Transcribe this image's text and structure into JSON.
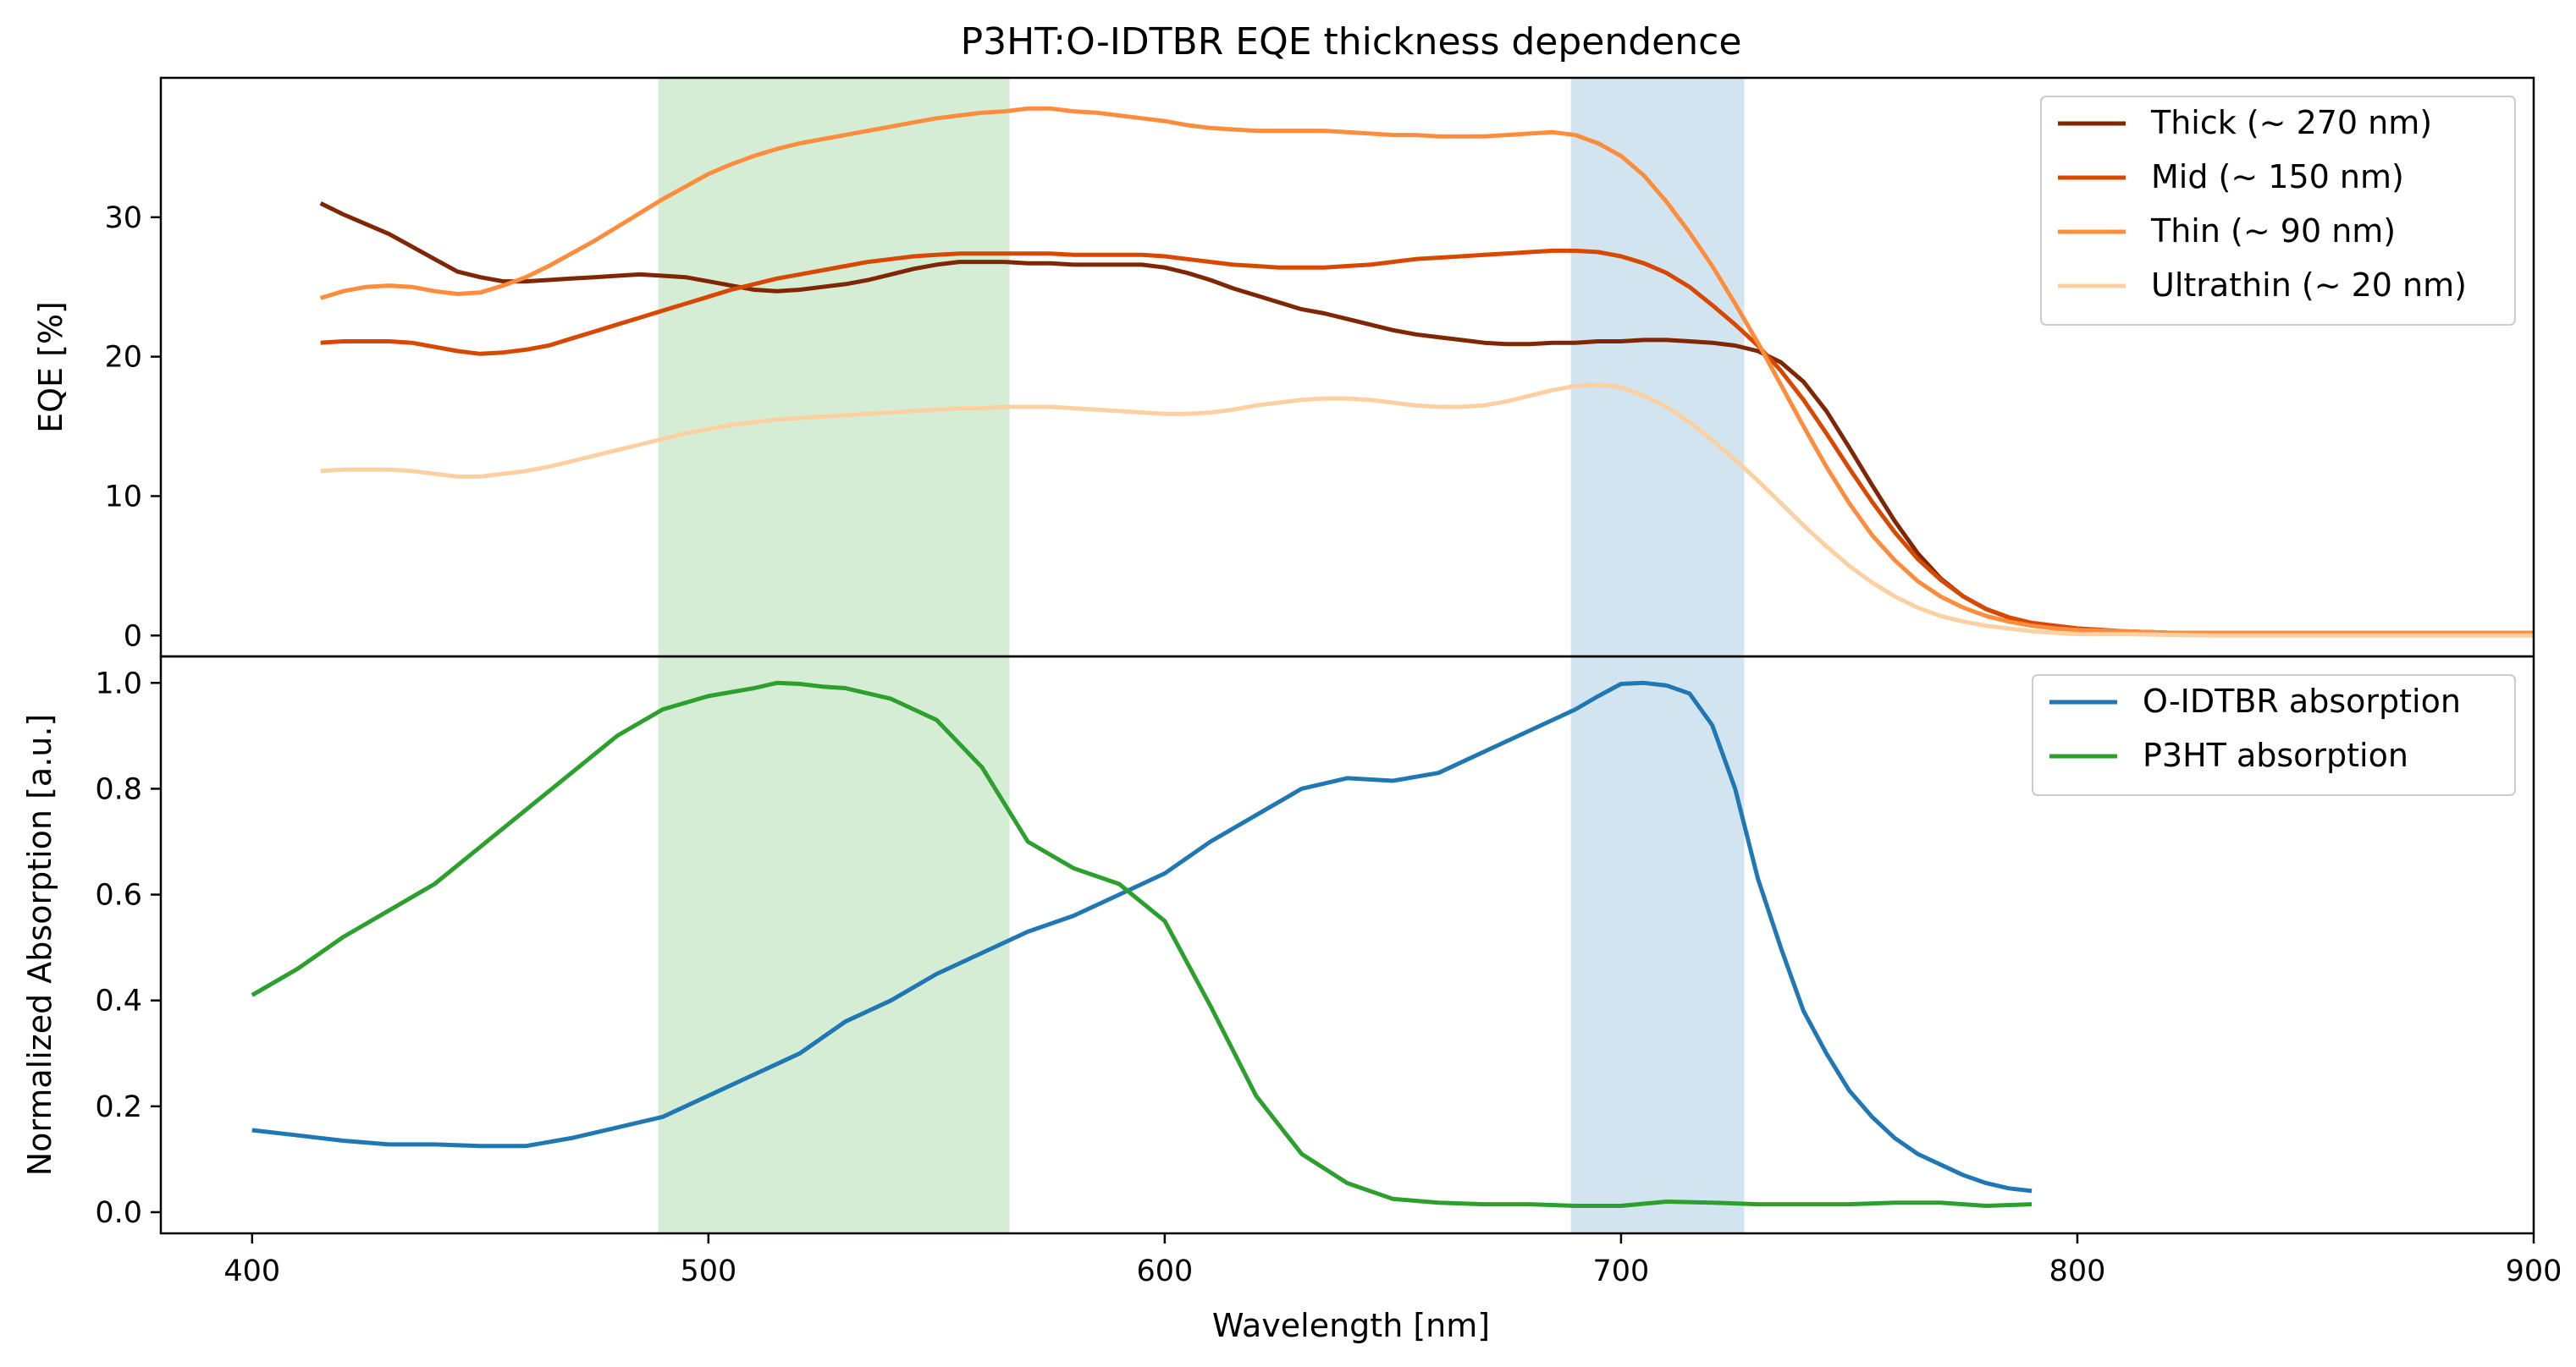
{
  "chart_data": {
    "type": "line",
    "title": "P3HT:O-IDTBR EQE thickness dependence",
    "xlabel": "Wavelength [nm]",
    "xlim": [
      380,
      900
    ],
    "xticks": [
      400,
      500,
      600,
      700,
      800,
      900
    ],
    "xtick_labels": [
      "400",
      "500",
      "600",
      "700",
      "800",
      "900"
    ],
    "shared_x": true,
    "highlight_bands": [
      {
        "x_range": [
          489,
          566
        ],
        "color": "#2ca02c",
        "opacity": 0.2
      },
      {
        "x_range": [
          689,
          727
        ],
        "color": "#1f77b4",
        "opacity": 0.2
      }
    ],
    "panels": [
      {
        "ylabel": "EQE [%]",
        "ylim": [
          -1.5,
          40
        ],
        "yticks": [
          0,
          10,
          20,
          30
        ],
        "ytick_labels": [
          "0",
          "10",
          "20",
          "30"
        ],
        "legend_position": "top-right",
        "series": [
          {
            "name": "Thick (~ 270 nm)",
            "color": "#7f2704",
            "x": [
              415,
              420,
              425,
              430,
              435,
              440,
              445,
              450,
              455,
              460,
              465,
              470,
              475,
              480,
              485,
              490,
              495,
              500,
              505,
              510,
              515,
              520,
              525,
              530,
              535,
              540,
              545,
              550,
              555,
              560,
              565,
              570,
              575,
              580,
              585,
              590,
              595,
              600,
              605,
              610,
              615,
              620,
              625,
              630,
              635,
              640,
              645,
              650,
              655,
              660,
              665,
              670,
              675,
              680,
              685,
              690,
              695,
              700,
              705,
              710,
              715,
              720,
              725,
              730,
              735,
              740,
              745,
              750,
              755,
              760,
              765,
              770,
              775,
              780,
              785,
              790,
              795,
              800,
              810,
              820,
              830,
              840,
              850,
              860,
              870,
              880,
              890,
              900
            ],
            "y": [
              31.0,
              30.2,
              29.5,
              28.8,
              27.9,
              27.0,
              26.1,
              25.7,
              25.4,
              25.4,
              25.5,
              25.6,
              25.7,
              25.8,
              25.9,
              25.8,
              25.7,
              25.4,
              25.1,
              24.8,
              24.7,
              24.8,
              25.0,
              25.2,
              25.5,
              25.9,
              26.3,
              26.6,
              26.8,
              26.8,
              26.8,
              26.7,
              26.7,
              26.6,
              26.6,
              26.6,
              26.6,
              26.4,
              26.0,
              25.5,
              24.9,
              24.4,
              23.9,
              23.4,
              23.1,
              22.7,
              22.3,
              21.9,
              21.6,
              21.4,
              21.2,
              21.0,
              20.9,
              20.9,
              21.0,
              21.0,
              21.1,
              21.1,
              21.2,
              21.2,
              21.1,
              21.0,
              20.8,
              20.4,
              19.6,
              18.2,
              16.1,
              13.5,
              10.8,
              8.2,
              5.9,
              4.1,
              2.8,
              1.9,
              1.3,
              0.9,
              0.7,
              0.5,
              0.3,
              0.2,
              0.15,
              0.1,
              0.1,
              0.1,
              0.1,
              0.1,
              0.1,
              0.1
            ]
          },
          {
            "name": "Mid (~ 150 nm)",
            "color": "#d94801",
            "x": [
              415,
              420,
              425,
              430,
              435,
              440,
              445,
              450,
              455,
              460,
              465,
              470,
              475,
              480,
              485,
              490,
              495,
              500,
              505,
              510,
              515,
              520,
              525,
              530,
              535,
              540,
              545,
              550,
              555,
              560,
              565,
              570,
              575,
              580,
              585,
              590,
              595,
              600,
              605,
              610,
              615,
              620,
              625,
              630,
              635,
              640,
              645,
              650,
              655,
              660,
              665,
              670,
              675,
              680,
              685,
              690,
              695,
              700,
              705,
              710,
              715,
              720,
              725,
              730,
              735,
              740,
              745,
              750,
              755,
              760,
              765,
              770,
              775,
              780,
              785,
              790,
              795,
              800,
              810,
              820,
              830,
              840,
              850,
              860,
              870,
              880,
              890,
              900
            ],
            "y": [
              21.0,
              21.1,
              21.1,
              21.1,
              21.0,
              20.7,
              20.4,
              20.2,
              20.3,
              20.5,
              20.8,
              21.3,
              21.8,
              22.3,
              22.8,
              23.3,
              23.8,
              24.3,
              24.8,
              25.2,
              25.6,
              25.9,
              26.2,
              26.5,
              26.8,
              27.0,
              27.2,
              27.3,
              27.4,
              27.4,
              27.4,
              27.4,
              27.4,
              27.3,
              27.3,
              27.3,
              27.3,
              27.2,
              27.0,
              26.8,
              26.6,
              26.5,
              26.4,
              26.4,
              26.4,
              26.5,
              26.6,
              26.8,
              27.0,
              27.1,
              27.2,
              27.3,
              27.4,
              27.5,
              27.6,
              27.6,
              27.5,
              27.2,
              26.7,
              26.0,
              25.0,
              23.7,
              22.3,
              20.8,
              19.0,
              16.9,
              14.5,
              12.0,
              9.6,
              7.4,
              5.5,
              4.0,
              2.8,
              1.9,
              1.3,
              0.9,
              0.7,
              0.5,
              0.3,
              0.2,
              0.15,
              0.1,
              0.1,
              0.1,
              0.1,
              0.1,
              0.1,
              0.1
            ]
          },
          {
            "name": "Thin (~ 90 nm)",
            "color": "#fd8d3c",
            "x": [
              415,
              420,
              425,
              430,
              435,
              440,
              445,
              450,
              455,
              460,
              465,
              470,
              475,
              480,
              485,
              490,
              495,
              500,
              505,
              510,
              515,
              520,
              525,
              530,
              535,
              540,
              545,
              550,
              555,
              560,
              565,
              570,
              575,
              580,
              585,
              590,
              595,
              600,
              605,
              610,
              615,
              620,
              625,
              630,
              635,
              640,
              645,
              650,
              655,
              660,
              665,
              670,
              675,
              680,
              685,
              690,
              695,
              700,
              705,
              710,
              715,
              720,
              725,
              730,
              735,
              740,
              745,
              750,
              755,
              760,
              765,
              770,
              775,
              780,
              785,
              790,
              795,
              800,
              810,
              820,
              830,
              840,
              850,
              860,
              870,
              880,
              890,
              900
            ],
            "y": [
              24.2,
              24.7,
              25.0,
              25.1,
              25.0,
              24.7,
              24.5,
              24.6,
              25.1,
              25.7,
              26.5,
              27.4,
              28.3,
              29.3,
              30.3,
              31.3,
              32.2,
              33.1,
              33.8,
              34.4,
              34.9,
              35.3,
              35.6,
              35.9,
              36.2,
              36.5,
              36.8,
              37.1,
              37.3,
              37.5,
              37.6,
              37.8,
              37.8,
              37.6,
              37.5,
              37.3,
              37.1,
              36.9,
              36.6,
              36.4,
              36.3,
              36.2,
              36.2,
              36.2,
              36.2,
              36.1,
              36.0,
              35.9,
              35.9,
              35.8,
              35.8,
              35.8,
              35.9,
              36.0,
              36.1,
              35.9,
              35.3,
              34.4,
              33.0,
              31.1,
              28.9,
              26.5,
              23.8,
              21.0,
              18.0,
              15.0,
              12.1,
              9.5,
              7.2,
              5.4,
              3.9,
              2.8,
              2.0,
              1.4,
              1.0,
              0.7,
              0.5,
              0.4,
              0.3,
              0.2,
              0.2,
              0.2,
              0.2,
              0.2,
              0.2,
              0.2,
              0.2,
              0.2
            ]
          },
          {
            "name": "Ultrathin (~ 20 nm)",
            "color": "#fdd0a2",
            "x": [
              415,
              420,
              425,
              430,
              435,
              440,
              445,
              450,
              455,
              460,
              465,
              470,
              475,
              480,
              485,
              490,
              495,
              500,
              505,
              510,
              515,
              520,
              525,
              530,
              535,
              540,
              545,
              550,
              555,
              560,
              565,
              570,
              575,
              580,
              585,
              590,
              595,
              600,
              605,
              610,
              615,
              620,
              625,
              630,
              635,
              640,
              645,
              650,
              655,
              660,
              665,
              670,
              675,
              680,
              685,
              690,
              695,
              700,
              705,
              710,
              715,
              720,
              725,
              730,
              735,
              740,
              745,
              750,
              755,
              760,
              765,
              770,
              775,
              780,
              785,
              790,
              795,
              800,
              810,
              820,
              830,
              840,
              850,
              860,
              870,
              880,
              890,
              900
            ],
            "y": [
              11.8,
              11.9,
              11.9,
              11.9,
              11.8,
              11.6,
              11.4,
              11.4,
              11.6,
              11.8,
              12.1,
              12.5,
              12.9,
              13.3,
              13.7,
              14.1,
              14.5,
              14.8,
              15.1,
              15.3,
              15.5,
              15.6,
              15.7,
              15.8,
              15.9,
              16.0,
              16.1,
              16.2,
              16.3,
              16.3,
              16.4,
              16.4,
              16.4,
              16.3,
              16.2,
              16.1,
              16.0,
              15.9,
              15.9,
              16.0,
              16.2,
              16.5,
              16.7,
              16.9,
              17.0,
              17.0,
              16.9,
              16.7,
              16.5,
              16.4,
              16.4,
              16.5,
              16.8,
              17.2,
              17.6,
              17.9,
              18.0,
              17.8,
              17.2,
              16.4,
              15.3,
              14.0,
              12.6,
              11.1,
              9.5,
              7.9,
              6.4,
              5.0,
              3.8,
              2.8,
              2.0,
              1.4,
              1.0,
              0.7,
              0.5,
              0.3,
              0.2,
              0.1,
              0.1,
              0.05,
              0.0,
              0.0,
              0.0,
              0.0,
              0.0,
              0.0,
              0.0,
              0.0
            ]
          }
        ]
      },
      {
        "ylabel": "Normalized Absorption [a.u.]",
        "ylim": [
          -0.04,
          1.05
        ],
        "yticks": [
          0.0,
          0.2,
          0.4,
          0.6,
          0.8,
          1.0
        ],
        "ytick_labels": [
          "0.0",
          "0.2",
          "0.4",
          "0.6",
          "0.8",
          "1.0"
        ],
        "legend_position": "top-right",
        "series": [
          {
            "name": "O-IDTBR absorption",
            "color": "#1f77b4",
            "x": [
              400,
              410,
              420,
              430,
              440,
              450,
              460,
              470,
              480,
              490,
              500,
              510,
              520,
              530,
              540,
              550,
              560,
              570,
              580,
              590,
              600,
              610,
              620,
              630,
              640,
              650,
              660,
              670,
              680,
              690,
              695,
              700,
              705,
              710,
              715,
              720,
              725,
              730,
              735,
              740,
              745,
              750,
              755,
              760,
              765,
              770,
              775,
              780,
              785,
              790
            ],
            "y": [
              0.155,
              0.145,
              0.135,
              0.128,
              0.128,
              0.125,
              0.125,
              0.14,
              0.16,
              0.18,
              0.22,
              0.26,
              0.3,
              0.36,
              0.4,
              0.45,
              0.49,
              0.53,
              0.56,
              0.6,
              0.64,
              0.7,
              0.75,
              0.8,
              0.82,
              0.815,
              0.83,
              0.87,
              0.91,
              0.95,
              0.975,
              0.998,
              1.0,
              0.995,
              0.98,
              0.92,
              0.8,
              0.63,
              0.5,
              0.38,
              0.3,
              0.23,
              0.18,
              0.14,
              0.11,
              0.09,
              0.07,
              0.055,
              0.045,
              0.04
            ]
          },
          {
            "name": "P3HT absorption",
            "color": "#2ca02c",
            "x": [
              400,
              410,
              420,
              430,
              440,
              450,
              460,
              470,
              480,
              490,
              500,
              510,
              515,
              520,
              525,
              530,
              540,
              550,
              560,
              570,
              580,
              590,
              600,
              610,
              620,
              630,
              640,
              650,
              660,
              670,
              680,
              690,
              700,
              710,
              720,
              730,
              740,
              750,
              760,
              770,
              780,
              790
            ],
            "y": [
              0.41,
              0.46,
              0.52,
              0.57,
              0.62,
              0.69,
              0.76,
              0.83,
              0.9,
              0.95,
              0.975,
              0.99,
              1.0,
              0.998,
              0.993,
              0.99,
              0.97,
              0.93,
              0.84,
              0.7,
              0.65,
              0.62,
              0.55,
              0.39,
              0.22,
              0.11,
              0.055,
              0.025,
              0.018,
              0.015,
              0.015,
              0.012,
              0.012,
              0.02,
              0.018,
              0.015,
              0.015,
              0.015,
              0.018,
              0.018,
              0.012,
              0.015
            ]
          }
        ]
      }
    ]
  }
}
